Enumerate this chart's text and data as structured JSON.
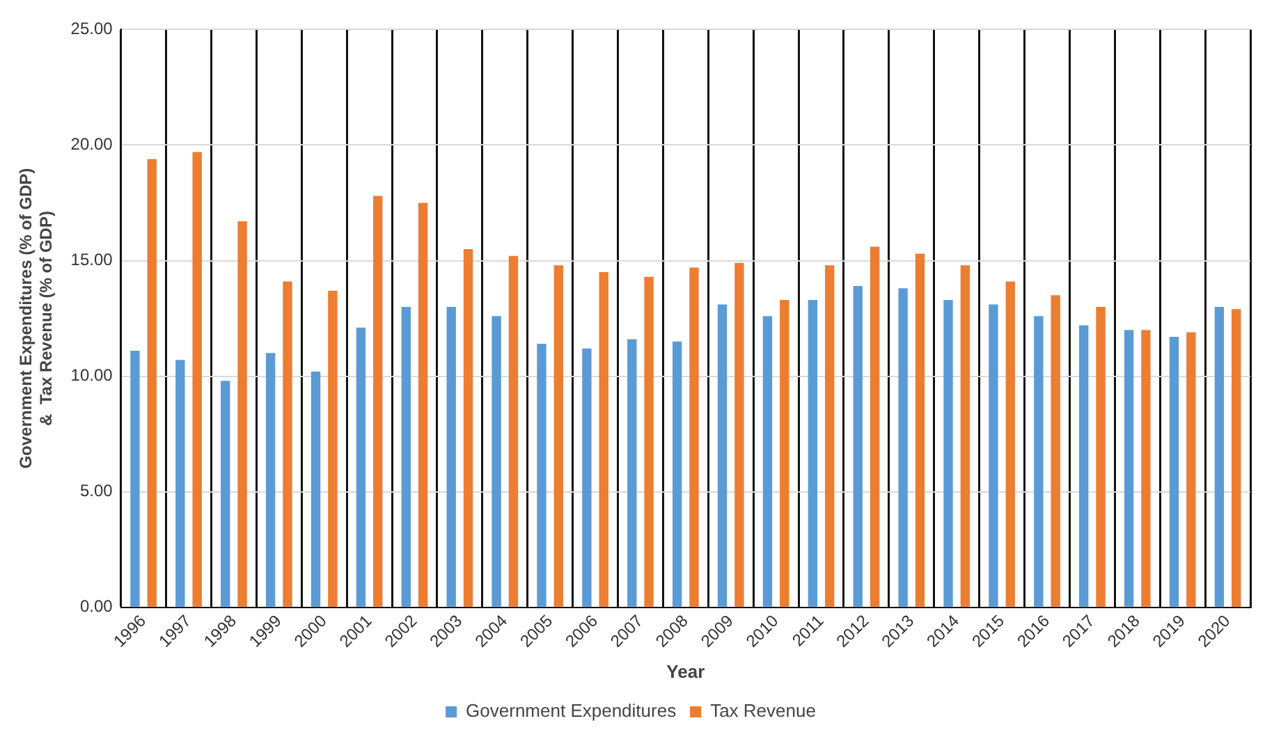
{
  "chart_data": {
    "type": "bar",
    "xlabel": "Year",
    "ylabel": "Government Expenditures (% of GDP)\n&  Tax Revenue (% of GDP)",
    "categories": [
      "1996",
      "1997",
      "1998",
      "1999",
      "2000",
      "2001",
      "2002",
      "2003",
      "2004",
      "2005",
      "2006",
      "2007",
      "2008",
      "2009",
      "2010",
      "2011",
      "2012",
      "2013",
      "2014",
      "2015",
      "2016",
      "2017",
      "2018",
      "2019",
      "2020"
    ],
    "series": [
      {
        "name": "Government Expenditures",
        "color": "#5b9bd5",
        "values": [
          11.1,
          10.7,
          9.8,
          11.0,
          10.2,
          12.1,
          13.0,
          13.0,
          12.6,
          11.4,
          11.2,
          11.6,
          11.5,
          13.1,
          12.6,
          13.3,
          13.9,
          13.8,
          13.3,
          13.1,
          12.6,
          12.2,
          12.0,
          11.7,
          13.0
        ]
      },
      {
        "name": "Tax Revenue",
        "color": "#ed7d31",
        "values": [
          19.4,
          19.7,
          16.7,
          14.1,
          13.7,
          17.8,
          17.5,
          15.5,
          15.2,
          14.8,
          14.5,
          14.3,
          14.7,
          14.9,
          13.3,
          14.8,
          15.6,
          15.3,
          14.8,
          14.1,
          13.5,
          13.0,
          12.0,
          11.9,
          12.9
        ]
      }
    ],
    "ylim": [
      0,
      25
    ],
    "yticks": [
      {
        "value": 0,
        "label": "0.00"
      },
      {
        "value": 5,
        "label": "5.00"
      },
      {
        "value": 10,
        "label": "10.00"
      },
      {
        "value": 15,
        "label": "15.00"
      },
      {
        "value": 20,
        "label": "20.00"
      },
      {
        "value": 25,
        "label": "25.00"
      }
    ],
    "grid": true,
    "legend": "bottom"
  }
}
